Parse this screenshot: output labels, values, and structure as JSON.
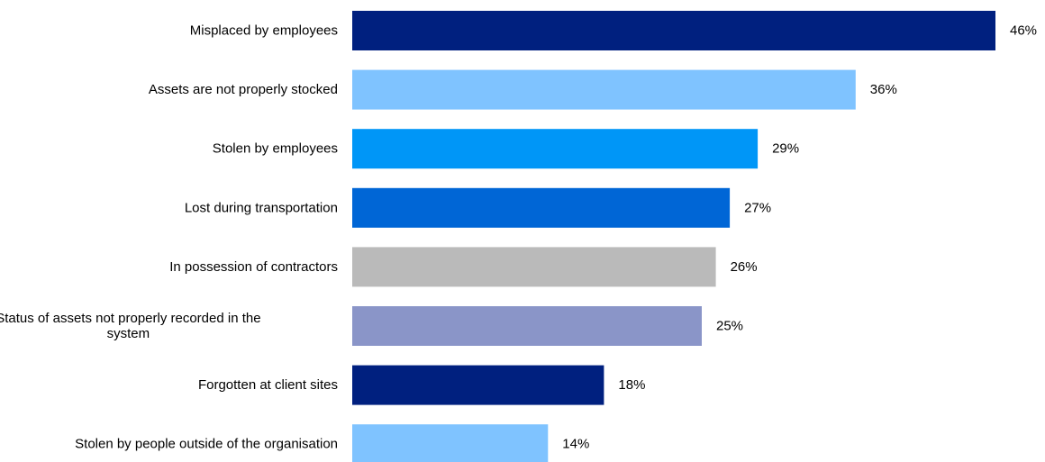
{
  "chart_data": {
    "type": "bar",
    "orientation": "horizontal",
    "title": "",
    "xlabel": "",
    "ylabel": "",
    "categories": [
      "Misplaced by employees",
      "Assets are not properly stocked",
      "Stolen by employees",
      "Lost during transportation",
      "In possession of contractors",
      "Status of assets not properly recorded in the system",
      "Forgotten at client sites",
      "Stolen by people outside of the organisation"
    ],
    "category_lines": [
      [
        "Misplaced by employees"
      ],
      [
        "Assets are not properly stocked"
      ],
      [
        "Stolen by employees"
      ],
      [
        "Lost during transportation"
      ],
      [
        "In possession of contractors"
      ],
      [
        "Status of assets not properly recorded in the",
        "system"
      ],
      [
        "Forgotten at client sites"
      ],
      [
        "Stolen by people outside of the organisation"
      ]
    ],
    "values": [
      46,
      36,
      29,
      27,
      26,
      25,
      18,
      14
    ],
    "value_labels": [
      "46%",
      "36%",
      "29%",
      "27%",
      "26%",
      "25%",
      "18%",
      "14%"
    ],
    "bar_colors": [
      "#00207F",
      "#7FC3FF",
      "#0096F7",
      "#0066D6",
      "#BABABA",
      "#8A95C8",
      "#00207F",
      "#7FC3FF"
    ],
    "xlim": [
      0,
      46
    ],
    "grid": false,
    "legend": "none"
  }
}
